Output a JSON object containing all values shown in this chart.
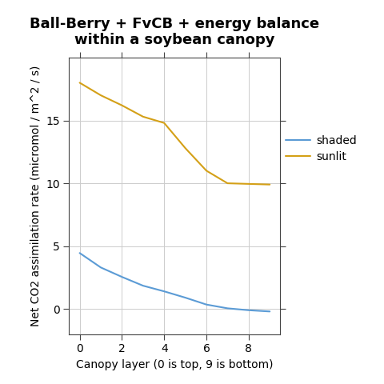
{
  "title": "Ball-Berry + FvCB + energy balance\nwithin a soybean canopy",
  "xlabel": "Canopy layer (0 is top, 9 is bottom)",
  "ylabel": "Net CO2 assimilation rate (micromol / m^2 / s)",
  "shaded_x": [
    0,
    1,
    2,
    3,
    4,
    5,
    6,
    7,
    8,
    9
  ],
  "shaded_y": [
    4.45,
    3.3,
    2.55,
    1.85,
    1.4,
    0.9,
    0.35,
    0.05,
    -0.1,
    -0.2
  ],
  "sunlit_x": [
    0,
    1,
    2,
    3,
    4,
    5,
    6,
    7,
    8,
    9
  ],
  "sunlit_y": [
    18.0,
    17.0,
    16.2,
    15.3,
    14.8,
    12.8,
    11.0,
    10.0,
    9.95,
    9.9
  ],
  "shaded_color": "#5b9bd5",
  "sunlit_color": "#d4a017",
  "xlim": [
    -0.5,
    9.5
  ],
  "ylim": [
    -2.0,
    20.0
  ],
  "xticks": [
    0,
    2,
    4,
    6,
    8
  ],
  "yticks": [
    0,
    5,
    10,
    15
  ],
  "legend_labels": [
    "shaded",
    "sunlit"
  ],
  "grid_color": "#cccccc",
  "background_color": "#ffffff",
  "title_fontsize": 13,
  "label_fontsize": 10,
  "tick_fontsize": 10,
  "legend_fontsize": 10,
  "line_width": 1.5
}
